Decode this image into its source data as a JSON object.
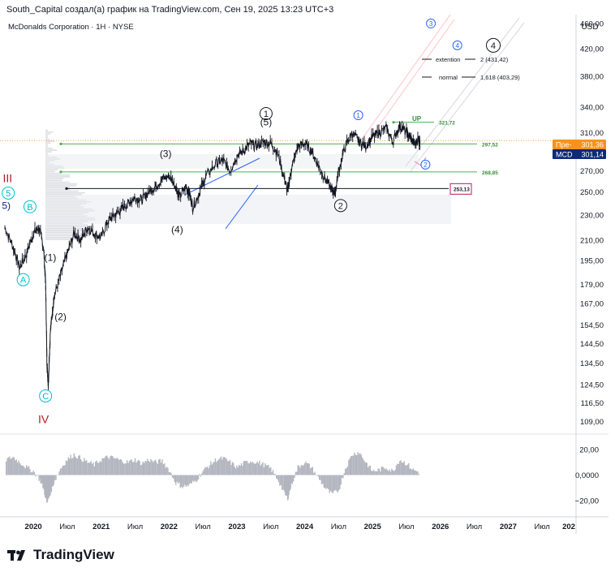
{
  "header": {
    "caption": "South_Capital создал(а) график на TradingView.com, Сен 19, 2025 13:23 UTC+3"
  },
  "chart_data": {
    "type": "line",
    "title": "McDonalds Corporation · 1H · NYSE",
    "currency": "USD",
    "scale": "log",
    "ylim": [
      105,
      475
    ],
    "y_ticks": [
      "460,00",
      "420,00",
      "380,00",
      "340,00",
      "310,00",
      "290,00",
      "270,00",
      "250,00",
      "230,00",
      "210,00",
      "195,00",
      "179,00",
      "167,00",
      "154,50",
      "144,50",
      "134,50",
      "124,50",
      "116,50",
      "109,00"
    ],
    "y_tick_values": [
      460,
      420,
      380,
      340,
      310,
      290,
      270,
      250,
      230,
      210,
      195,
      179,
      167,
      154.5,
      144.5,
      134.5,
      124.5,
      116.5,
      109
    ],
    "x_ticks": [
      "2020",
      "Июл",
      "2021",
      "Июл",
      "2022",
      "Июл",
      "2023",
      "Июл",
      "2024",
      "Июл",
      "2025",
      "Июл",
      "2026",
      "Июл",
      "2027",
      "Июл",
      "202"
    ],
    "x_tick_values": [
      2020.0,
      2020.5,
      2021.0,
      2021.5,
      2022.0,
      2022.5,
      2023.0,
      2023.5,
      2024.0,
      2024.5,
      2025.0,
      2025.5,
      2026.0,
      2026.5,
      2027.0,
      2027.5,
      2028.0
    ],
    "x_bold_ticks": [
      "2020",
      "2021",
      "2022",
      "2023",
      "2024",
      "2025",
      "2026",
      "2027",
      "202"
    ],
    "xlim": [
      2019.58,
      2028.0
    ],
    "series": [
      {
        "name": "MCD",
        "t": [
          2019.58,
          2019.7,
          2019.8,
          2019.9,
          2020.0,
          2020.08,
          2020.15,
          2020.18,
          2020.2,
          2020.22,
          2020.25,
          2020.3,
          2020.4,
          2020.5,
          2020.6,
          2020.7,
          2020.8,
          2020.9,
          2021.0,
          2021.1,
          2021.2,
          2021.3,
          2021.4,
          2021.5,
          2021.6,
          2021.7,
          2021.8,
          2021.9,
          2022.0,
          2022.1,
          2022.15,
          2022.25,
          2022.3,
          2022.35,
          2022.45,
          2022.55,
          2022.7,
          2022.8,
          2022.9,
          2023.0,
          2023.1,
          2023.2,
          2023.3,
          2023.4,
          2023.5,
          2023.6,
          2023.7,
          2023.75,
          2023.8,
          2023.9,
          2024.0,
          2024.1,
          2024.2,
          2024.3,
          2024.4,
          2024.45,
          2024.5,
          2024.6,
          2024.7,
          2024.8,
          2024.9,
          2025.0,
          2025.1,
          2025.2,
          2025.3,
          2025.4,
          2025.5,
          2025.55,
          2025.62,
          2025.68,
          2025.7
        ],
        "y": [
          220,
          205,
          190,
          200,
          215,
          220,
          205,
          180,
          135,
          124,
          150,
          170,
          185,
          200,
          215,
          210,
          220,
          215,
          212,
          225,
          230,
          235,
          240,
          245,
          243,
          250,
          255,
          262,
          265,
          255,
          245,
          255,
          250,
          236,
          250,
          265,
          278,
          280,
          270,
          285,
          290,
          298,
          295,
          300,
          298,
          288,
          262,
          250,
          270,
          295,
          298,
          290,
          275,
          262,
          252,
          250,
          270,
          295,
          310,
          300,
          295,
          305,
          310,
          315,
          300,
          318,
          310,
          305,
          297,
          303,
          301
        ]
      }
    ],
    "wave_labels": [
      {
        "label": "III",
        "t": 2019.62,
        "y": 262,
        "style": "roman"
      },
      {
        "label": "5",
        "t": 2019.63,
        "y": 249,
        "style": "circle-cyan"
      },
      {
        "label": "5)",
        "t": 2019.6,
        "y": 238,
        "style": "navy"
      },
      {
        "label": "B",
        "t": 2019.95,
        "y": 237,
        "style": "circle-cyan"
      },
      {
        "label": "A",
        "t": 2019.85,
        "y": 182,
        "style": "circle-cyan"
      },
      {
        "label": "(1)",
        "t": 2020.25,
        "y": 197,
        "style": "plain"
      },
      {
        "label": "(2)",
        "t": 2020.4,
        "y": 159,
        "style": "plain"
      },
      {
        "label": "C",
        "t": 2020.18,
        "y": 119.5,
        "style": "circle-cyan"
      },
      {
        "label": "IV",
        "t": 2020.15,
        "y": 109.5,
        "style": "roman"
      },
      {
        "label": "(3)",
        "t": 2021.95,
        "y": 287,
        "style": "plain"
      },
      {
        "label": "(4)",
        "t": 2022.12,
        "y": 218,
        "style": "plain"
      },
      {
        "label": "1",
        "t": 2023.43,
        "y": 332,
        "style": "circle-black"
      },
      {
        "label": "(5)",
        "t": 2023.43,
        "y": 322,
        "style": "plain"
      },
      {
        "label": "2",
        "t": 2024.53,
        "y": 238,
        "style": "circle-black"
      },
      {
        "label": "1",
        "t": 2024.79,
        "y": 330,
        "style": "circle-blue"
      },
      {
        "label": "2",
        "t": 2025.78,
        "y": 276,
        "style": "circle-blue"
      },
      {
        "label": "3",
        "t": 2025.86,
        "y": 460,
        "style": "circle-blue"
      },
      {
        "label": "4",
        "t": 2026.78,
        "y": 425,
        "style": "circle-black-large"
      },
      {
        "label": "4",
        "t": 2026.25,
        "y": 425,
        "style": "circle-blue"
      },
      {
        "label": "UP",
        "t": 2025.65,
        "y": 327,
        "style": "green"
      }
    ],
    "levels": [
      {
        "label": "321,72",
        "value": 321.72,
        "color": "#4caf50"
      },
      {
        "label": "297,52",
        "value": 297.52,
        "color": "#4caf50"
      },
      {
        "label": "268,85",
        "value": 268.85,
        "color": "#4caf50"
      },
      {
        "label": "253,13",
        "value": 253.13,
        "color": "#131722"
      }
    ],
    "targets": [
      {
        "text": "extention",
        "value_label": "2 (431,42)",
        "value": 431.42
      },
      {
        "text": "normal",
        "value_label": "1,618 (403,29)",
        "value": 403.29
      }
    ],
    "price_tags": [
      {
        "label": "Пре-",
        "value_label": "301,36",
        "value": 301.36,
        "color": "#f7931a"
      },
      {
        "label": "MCD",
        "value_label": "301,14",
        "value": 301.14,
        "color": "#0d2a7a"
      }
    ],
    "oscillator": {
      "y_ticks": [
        "20,00",
        "0,0000",
        "−20,00"
      ],
      "y_tick_values": [
        20,
        0,
        -20
      ],
      "ylim": [
        -30,
        30
      ],
      "t": [
        2019.6,
        2019.7,
        2019.8,
        2019.9,
        2020.0,
        2020.1,
        2020.15,
        2020.2,
        2020.25,
        2020.3,
        2020.4,
        2020.5,
        2020.6,
        2020.7,
        2020.8,
        2020.9,
        2021.0,
        2021.1,
        2021.2,
        2021.3,
        2021.4,
        2021.5,
        2021.6,
        2021.7,
        2021.8,
        2021.9,
        2022.0,
        2022.1,
        2022.2,
        2022.3,
        2022.4,
        2022.5,
        2022.6,
        2022.7,
        2022.8,
        2022.9,
        2023.0,
        2023.1,
        2023.2,
        2023.3,
        2023.4,
        2023.5,
        2023.6,
        2023.7,
        2023.75,
        2023.8,
        2023.9,
        2024.0,
        2024.1,
        2024.2,
        2024.3,
        2024.4,
        2024.5,
        2024.6,
        2024.7,
        2024.8,
        2024.9,
        2025.0,
        2025.1,
        2025.2,
        2025.3,
        2025.4,
        2025.5,
        2025.6,
        2025.7
      ],
      "v": [
        12,
        14,
        10,
        6,
        3,
        -4,
        -10,
        -22,
        -14,
        -6,
        5,
        12,
        16,
        13,
        10,
        8,
        12,
        14,
        13,
        11,
        10,
        12,
        9,
        12,
        10,
        11,
        4,
        -6,
        -9,
        -8,
        -4,
        3,
        8,
        12,
        13,
        10,
        6,
        9,
        11,
        10,
        8,
        5,
        -3,
        -14,
        -18,
        -8,
        6,
        10,
        6,
        -2,
        -10,
        -15,
        -12,
        5,
        16,
        18,
        10,
        3,
        4,
        6,
        3,
        12,
        9,
        4,
        2
      ]
    }
  },
  "branding": {
    "logo_text": "TradingView"
  }
}
